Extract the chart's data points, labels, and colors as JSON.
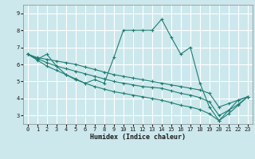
{
  "xlabel": "Humidex (Indice chaleur)",
  "bg_color": "#cce8ec",
  "grid_color": "#ffffff",
  "line_color": "#1e7d72",
  "xlim": [
    -0.5,
    23.5
  ],
  "ylim": [
    2.5,
    9.5
  ],
  "yticks": [
    3,
    4,
    5,
    6,
    7,
    8,
    9
  ],
  "xticks": [
    0,
    1,
    2,
    3,
    4,
    5,
    6,
    7,
    8,
    9,
    10,
    11,
    12,
    13,
    14,
    15,
    16,
    17,
    18,
    19,
    20,
    21,
    22,
    23
  ],
  "series1": [
    [
      0,
      6.6
    ],
    [
      1,
      6.3
    ],
    [
      2,
      6.6
    ],
    [
      3,
      5.9
    ],
    [
      4,
      5.4
    ],
    [
      5,
      5.1
    ],
    [
      6,
      4.9
    ],
    [
      7,
      5.1
    ],
    [
      8,
      4.9
    ],
    [
      9,
      6.4
    ],
    [
      10,
      8.0
    ],
    [
      11,
      8.0
    ],
    [
      12,
      8.0
    ],
    [
      13,
      8.0
    ],
    [
      14,
      8.65
    ],
    [
      15,
      7.6
    ],
    [
      16,
      6.6
    ],
    [
      17,
      7.0
    ],
    [
      18,
      4.9
    ],
    [
      19,
      3.5
    ],
    [
      20,
      2.7
    ],
    [
      21,
      3.3
    ],
    [
      22,
      3.9
    ],
    [
      23,
      4.1
    ]
  ],
  "series2": [
    [
      0,
      6.6
    ],
    [
      1,
      6.4
    ],
    [
      2,
      6.3
    ],
    [
      3,
      6.2
    ],
    [
      4,
      6.1
    ],
    [
      5,
      6.0
    ],
    [
      6,
      5.85
    ],
    [
      7,
      5.7
    ],
    [
      8,
      5.55
    ],
    [
      9,
      5.4
    ],
    [
      10,
      5.3
    ],
    [
      11,
      5.2
    ],
    [
      12,
      5.1
    ],
    [
      13,
      5.0
    ],
    [
      14,
      4.9
    ],
    [
      15,
      4.8
    ],
    [
      16,
      4.7
    ],
    [
      17,
      4.6
    ],
    [
      18,
      4.5
    ],
    [
      19,
      4.3
    ],
    [
      20,
      3.5
    ],
    [
      21,
      3.7
    ],
    [
      22,
      3.9
    ],
    [
      23,
      4.1
    ]
  ],
  "series3": [
    [
      0,
      6.6
    ],
    [
      1,
      6.35
    ],
    [
      2,
      6.1
    ],
    [
      3,
      5.9
    ],
    [
      4,
      5.75
    ],
    [
      5,
      5.6
    ],
    [
      6,
      5.45
    ],
    [
      7,
      5.3
    ],
    [
      8,
      5.15
    ],
    [
      9,
      5.0
    ],
    [
      10,
      4.9
    ],
    [
      11,
      4.8
    ],
    [
      12,
      4.7
    ],
    [
      13,
      4.65
    ],
    [
      14,
      4.6
    ],
    [
      15,
      4.45
    ],
    [
      16,
      4.3
    ],
    [
      17,
      4.2
    ],
    [
      18,
      4.05
    ],
    [
      19,
      3.8
    ],
    [
      20,
      3.0
    ],
    [
      21,
      3.3
    ],
    [
      22,
      3.65
    ],
    [
      23,
      4.1
    ]
  ],
  "series4": [
    [
      0,
      6.6
    ],
    [
      1,
      6.25
    ],
    [
      2,
      5.9
    ],
    [
      3,
      5.65
    ],
    [
      4,
      5.4
    ],
    [
      5,
      5.15
    ],
    [
      6,
      4.9
    ],
    [
      7,
      4.7
    ],
    [
      8,
      4.55
    ],
    [
      9,
      4.4
    ],
    [
      10,
      4.3
    ],
    [
      11,
      4.2
    ],
    [
      12,
      4.1
    ],
    [
      13,
      4.0
    ],
    [
      14,
      3.9
    ],
    [
      15,
      3.75
    ],
    [
      16,
      3.6
    ],
    [
      17,
      3.5
    ],
    [
      18,
      3.35
    ],
    [
      19,
      3.1
    ],
    [
      20,
      2.7
    ],
    [
      21,
      3.1
    ],
    [
      22,
      3.6
    ],
    [
      23,
      4.1
    ]
  ]
}
